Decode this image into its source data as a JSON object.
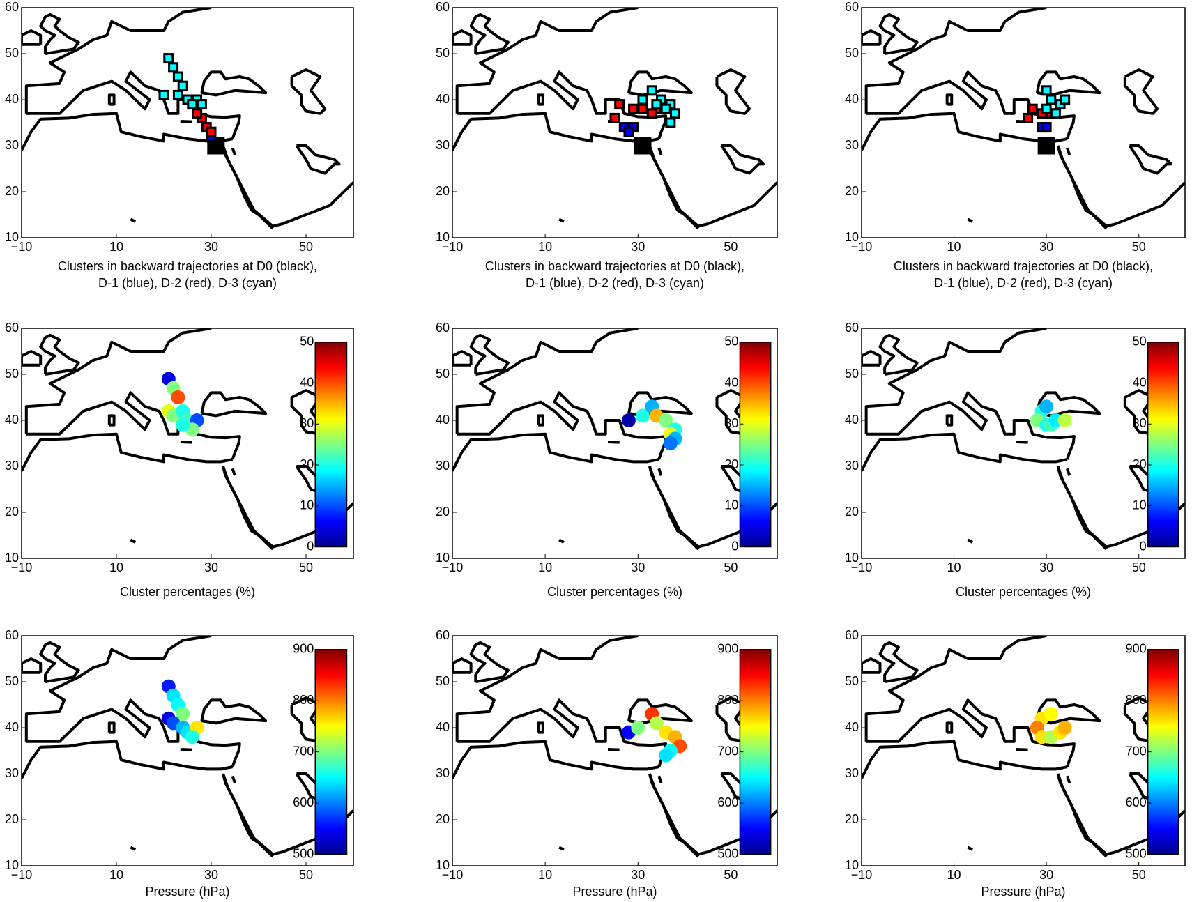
{
  "chart_data": [
    {
      "type": "scatter",
      "marker": "square",
      "xlim": [
        -10,
        60
      ],
      "ylim": [
        10,
        60
      ],
      "xticks": [
        {
          "value": -10,
          "label": "−10"
        },
        10,
        30,
        50
      ],
      "yticks": [
        10,
        20,
        30,
        40,
        50,
        60
      ],
      "xlabel": [
        "Clusters in backward trajectories at D0 (black),",
        "D-1 (blue), D-2 (red), D-3 (cyan)"
      ],
      "series": [
        {
          "color": "#000000",
          "x": [
            31
          ],
          "values": [
            30
          ]
        },
        {
          "color": "#0000ff",
          "x": [
            30
          ],
          "values": [
            32
          ]
        },
        {
          "color": "#ff0000",
          "x": [
            28,
            27,
            29,
            30
          ],
          "values": [
            36,
            37,
            34,
            33
          ]
        },
        {
          "color": "#00ffff",
          "x": [
            21,
            22,
            23,
            24,
            20,
            23,
            25,
            27,
            28,
            26
          ],
          "values": [
            49,
            47,
            45,
            43,
            41,
            41,
            40,
            40,
            39,
            39
          ]
        }
      ]
    },
    {
      "type": "scatter",
      "marker": "square",
      "xlim": [
        -10,
        60
      ],
      "ylim": [
        10,
        60
      ],
      "xticks": [
        {
          "value": -10,
          "label": "−10"
        },
        10,
        30,
        50
      ],
      "yticks": [
        10,
        20,
        30,
        40,
        50,
        60
      ],
      "xlabel": [
        "Clusters in backward trajectories at D0 (black),",
        "D-1 (blue), D-2 (red), D-3 (cyan)"
      ],
      "series": [
        {
          "color": "#000000",
          "x": [
            31
          ],
          "values": [
            30
          ]
        },
        {
          "color": "#0000ff",
          "x": [
            27,
            29,
            28
          ],
          "values": [
            34,
            34,
            33
          ]
        },
        {
          "color": "#ff0000",
          "x": [
            25,
            26,
            29,
            31,
            34,
            33
          ],
          "values": [
            36,
            39,
            38,
            38,
            38,
            37
          ]
        },
        {
          "color": "#00ffff",
          "x": [
            31,
            33,
            35,
            37,
            36,
            38,
            37,
            34
          ],
          "values": [
            40,
            42,
            40,
            39,
            38,
            37,
            35,
            39
          ]
        }
      ]
    },
    {
      "type": "scatter",
      "marker": "square",
      "xlim": [
        -10,
        60
      ],
      "ylim": [
        10,
        60
      ],
      "xticks": [
        {
          "value": -10,
          "label": "−10"
        },
        10,
        30,
        50
      ],
      "yticks": [
        10,
        20,
        30,
        40,
        50,
        60
      ],
      "xlabel": [
        "Clusters in backward trajectories at D0 (black),",
        "D-1 (blue), D-2 (red), D-3 (cyan)"
      ],
      "series": [
        {
          "color": "#000000",
          "x": [
            30
          ],
          "values": [
            30
          ]
        },
        {
          "color": "#0000ff",
          "x": [
            29,
            30
          ],
          "values": [
            34,
            34
          ]
        },
        {
          "color": "#ff0000",
          "x": [
            26,
            27,
            29,
            31
          ],
          "values": [
            36,
            38,
            37,
            37
          ]
        },
        {
          "color": "#00ffff",
          "x": [
            30,
            31,
            30,
            33,
            34,
            32
          ],
          "values": [
            42,
            40,
            38,
            39,
            40,
            37
          ]
        }
      ]
    },
    {
      "type": "colorscatter",
      "colormap": "jet",
      "xlim": [
        -10,
        60
      ],
      "ylim": [
        10,
        60
      ],
      "xticks": [
        {
          "value": -10,
          "label": "−10"
        },
        10,
        30,
        50
      ],
      "yticks": [
        10,
        20,
        30,
        40,
        50,
        60
      ],
      "xlabel": [
        "Cluster percentages (%)"
      ],
      "clim": [
        0,
        50
      ],
      "cticks": [
        0,
        10,
        20,
        30,
        40,
        50
      ],
      "x": [
        21,
        22,
        23,
        21,
        22,
        24,
        25,
        27,
        26,
        24
      ],
      "values": [
        49,
        47,
        45,
        42,
        41,
        42,
        40,
        40,
        38,
        39
      ],
      "c": [
        5,
        25,
        40,
        30,
        25,
        20,
        22,
        10,
        25,
        20
      ]
    },
    {
      "type": "colorscatter",
      "colormap": "jet",
      "xlim": [
        -10,
        60
      ],
      "ylim": [
        10,
        60
      ],
      "xticks": [
        {
          "value": -10,
          "label": "−10"
        },
        10,
        30,
        50
      ],
      "yticks": [
        10,
        20,
        30,
        40,
        50,
        60
      ],
      "xlabel": [
        "Cluster percentages (%)"
      ],
      "clim": [
        0,
        50
      ],
      "cticks": [
        0,
        10,
        20,
        30,
        40,
        50
      ],
      "x": [
        28,
        31,
        33,
        34,
        36,
        38,
        37,
        38,
        37
      ],
      "values": [
        40,
        41,
        43,
        41,
        40,
        38,
        37,
        36,
        35
      ],
      "c": [
        2,
        20,
        15,
        35,
        25,
        20,
        30,
        15,
        12
      ]
    },
    {
      "type": "colorscatter",
      "colormap": "jet",
      "xlim": [
        -10,
        60
      ],
      "ylim": [
        10,
        60
      ],
      "xticks": [
        {
          "value": -10,
          "label": "−10"
        },
        10,
        30,
        50
      ],
      "yticks": [
        10,
        20,
        30,
        40,
        50,
        60
      ],
      "xlabel": [
        "Cluster percentages (%)"
      ],
      "clim": [
        0,
        50
      ],
      "cticks": [
        0,
        10,
        20,
        30,
        40,
        50
      ],
      "x": [
        29,
        30,
        28,
        30,
        31,
        32,
        34
      ],
      "values": [
        42,
        43,
        40,
        39,
        39,
        40,
        40
      ],
      "c": [
        20,
        15,
        25,
        20,
        22,
        18,
        28
      ]
    },
    {
      "type": "colorscatter",
      "colormap": "jet",
      "xlim": [
        -10,
        60
      ],
      "ylim": [
        10,
        60
      ],
      "xticks": [
        {
          "value": -10,
          "label": "−10"
        },
        10,
        30,
        50
      ],
      "yticks": [
        10,
        20,
        30,
        40,
        50,
        60
      ],
      "xlabel": [
        "Pressure (hPa)"
      ],
      "clim": [
        500,
        900
      ],
      "cticks": [
        500,
        600,
        700,
        800,
        900
      ],
      "x": [
        21,
        22,
        23,
        24,
        21,
        22,
        24,
        25,
        27,
        26
      ],
      "values": [
        49,
        47,
        45,
        43,
        42,
        41,
        40,
        39,
        40,
        38
      ],
      "c": [
        560,
        640,
        650,
        700,
        540,
        580,
        620,
        640,
        760,
        660
      ]
    },
    {
      "type": "colorscatter",
      "colormap": "jet",
      "xlim": [
        -10,
        60
      ],
      "ylim": [
        10,
        60
      ],
      "xticks": [
        {
          "value": -10,
          "label": "−10"
        },
        10,
        30,
        50
      ],
      "yticks": [
        10,
        20,
        30,
        40,
        50,
        60
      ],
      "xlabel": [
        "Pressure (hPa)"
      ],
      "clim": [
        500,
        900
      ],
      "cticks": [
        500,
        600,
        700,
        800,
        900
      ],
      "x": [
        28,
        30,
        33,
        34,
        36,
        38,
        39,
        37,
        36
      ],
      "values": [
        39,
        40,
        43,
        41,
        39,
        38,
        36,
        35,
        34
      ],
      "c": [
        550,
        700,
        830,
        720,
        760,
        780,
        820,
        650,
        640
      ]
    },
    {
      "type": "colorscatter",
      "colormap": "jet",
      "xlim": [
        -10,
        60
      ],
      "ylim": [
        10,
        60
      ],
      "xticks": [
        {
          "value": -10,
          "label": "−10"
        },
        10,
        30,
        50
      ],
      "yticks": [
        10,
        20,
        30,
        40,
        50,
        60
      ],
      "xlabel": [
        "Pressure (hPa)"
      ],
      "clim": [
        500,
        900
      ],
      "cticks": [
        500,
        600,
        700,
        800,
        900
      ],
      "x": [
        29,
        31,
        28,
        29,
        31,
        33,
        34
      ],
      "values": [
        42,
        43,
        40,
        38,
        38,
        39,
        40
      ],
      "c": [
        760,
        750,
        800,
        760,
        720,
        760,
        780
      ]
    }
  ]
}
